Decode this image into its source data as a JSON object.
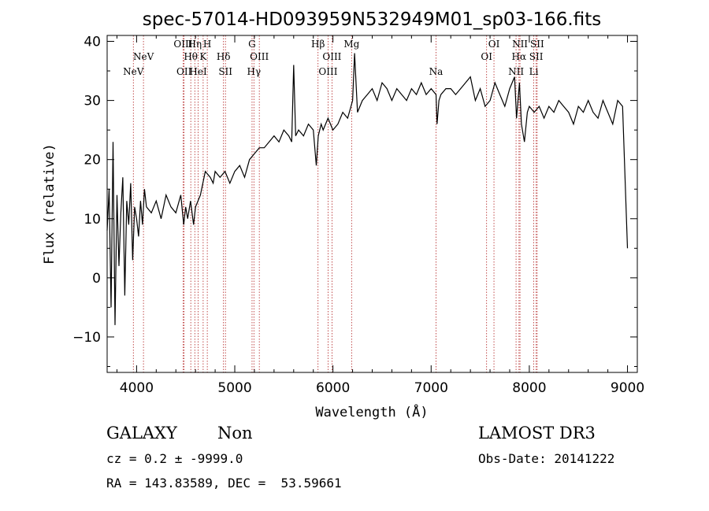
{
  "chart_data": {
    "type": "line",
    "title": "spec-57014-HD093959N532949M01_sp03-166.fits",
    "xlabel": "Wavelength (Å)",
    "ylabel": "Flux (relative)",
    "xlim": [
      3700,
      9100
    ],
    "ylim": [
      -16,
      41
    ],
    "xticks": [
      4000,
      5000,
      6000,
      7000,
      8000,
      9000
    ],
    "yticks": [
      -10,
      0,
      10,
      20,
      30,
      40
    ],
    "grid": false,
    "series": [
      {
        "x": [
          3700,
          3720,
          3740,
          3760,
          3780,
          3800,
          3820,
          3840,
          3860,
          3880,
          3900,
          3920,
          3940,
          3960,
          3980,
          4000,
          4020,
          4040,
          4060,
          4080,
          4100,
          4150,
          4200,
          4250,
          4300,
          4350,
          4400,
          4450,
          4480,
          4500,
          4520,
          4550,
          4580,
          4600,
          4650,
          4700,
          4750,
          4780,
          4800,
          4850,
          4900,
          4950,
          5000,
          5050,
          5100,
          5150,
          5200,
          5250,
          5300,
          5350,
          5400,
          5450,
          5500,
          5550,
          5580,
          5600,
          5620,
          5650,
          5700,
          5750,
          5800,
          5830,
          5850,
          5880,
          5900,
          5950,
          6000,
          6050,
          6100,
          6150,
          6200,
          6220,
          6250,
          6300,
          6350,
          6400,
          6450,
          6500,
          6550,
          6600,
          6650,
          6700,
          6750,
          6800,
          6850,
          6900,
          6950,
          7000,
          7050,
          7060,
          7080,
          7100,
          7150,
          7200,
          7250,
          7300,
          7350,
          7400,
          7450,
          7500,
          7550,
          7600,
          7650,
          7700,
          7750,
          7800,
          7850,
          7870,
          7900,
          7920,
          7950,
          7980,
          8000,
          8050,
          8100,
          8150,
          8200,
          8250,
          8300,
          8350,
          8400,
          8450,
          8500,
          8550,
          8600,
          8650,
          8700,
          8750,
          8800,
          8850,
          8900,
          8950,
          9000
        ],
        "y": [
          8,
          15,
          -5,
          23,
          -8,
          14,
          2,
          11,
          17,
          -3,
          13,
          9,
          16,
          3,
          12,
          10,
          7,
          13,
          9,
          15,
          12,
          11,
          13,
          10,
          14,
          12,
          11,
          14,
          9,
          12,
          10,
          13,
          9,
          12,
          14,
          18,
          17,
          16,
          18,
          17,
          18,
          16,
          18,
          19,
          17,
          20,
          21,
          22,
          22,
          23,
          24,
          23,
          25,
          24,
          23,
          36,
          24,
          25,
          24,
          26,
          25,
          19,
          24,
          26,
          25,
          27,
          25,
          26,
          28,
          27,
          30,
          38,
          28,
          30,
          31,
          32,
          30,
          33,
          32,
          30,
          32,
          31,
          30,
          32,
          31,
          33,
          31,
          32,
          31,
          26,
          30,
          31,
          32,
          32,
          31,
          32,
          33,
          34,
          30,
          32,
          29,
          30,
          33,
          31,
          29,
          32,
          34,
          27,
          33,
          26,
          23,
          28,
          29,
          28,
          29,
          27,
          29,
          28,
          30,
          29,
          28,
          26,
          29,
          28,
          30,
          28,
          27,
          30,
          28,
          26,
          30,
          29,
          5
        ]
      }
    ],
    "emission_lines": [
      {
        "x": 3967,
        "label": "NeV",
        "row": 3
      },
      {
        "x": 4070,
        "label": "NeV",
        "row": 2
      },
      {
        "x": 4474,
        "label": "OIII",
        "row": 1
      },
      {
        "x": 4484,
        "label": "OII",
        "row": 3
      },
      {
        "x": 4552,
        "label": "Hθ",
        "row": 2
      },
      {
        "x": 4593,
        "label": "Hη",
        "row": 1
      },
      {
        "x": 4627,
        "label": "HeI",
        "row": 3
      },
      {
        "x": 4678,
        "label": "K",
        "row": 2
      },
      {
        "x": 4720,
        "label": "H",
        "row": 1
      },
      {
        "x": 4885,
        "label": "Hδ",
        "row": 2
      },
      {
        "x": 4905,
        "label": "SII",
        "row": 3
      },
      {
        "x": 5176,
        "label": "G",
        "row": 1
      },
      {
        "x": 5195,
        "label": "Hγ",
        "row": 3
      },
      {
        "x": 5250,
        "label": "OIII",
        "row": 2
      },
      {
        "x": 5848,
        "label": "Hβ",
        "row": 1
      },
      {
        "x": 5950,
        "label": "OIII",
        "row": 3
      },
      {
        "x": 5990,
        "label": "OIII",
        "row": 2
      },
      {
        "x": 6190,
        "label": "Mg",
        "row": 1
      },
      {
        "x": 7050,
        "label": "Na",
        "row": 3
      },
      {
        "x": 7565,
        "label": "OI",
        "row": 2
      },
      {
        "x": 7640,
        "label": "OI",
        "row": 1
      },
      {
        "x": 7865,
        "label": "NII",
        "row": 3
      },
      {
        "x": 7895,
        "label": "Hα",
        "row": 2
      },
      {
        "x": 7905,
        "label": "NII",
        "row": 1
      },
      {
        "x": 8045,
        "label": "Li",
        "row": 3
      },
      {
        "x": 8070,
        "label": "SII",
        "row": 2
      },
      {
        "x": 8080,
        "label": "SII",
        "row": 1
      }
    ]
  },
  "info": {
    "object_class": "GALAXY",
    "subclass": "Non",
    "survey": "LAMOST DR3",
    "cz_line": "cz = 0.2 ± -9999.0",
    "obs_date": "Obs-Date: 20141222",
    "radec_line": "RA = 143.83589, DEC =  53.59661"
  }
}
